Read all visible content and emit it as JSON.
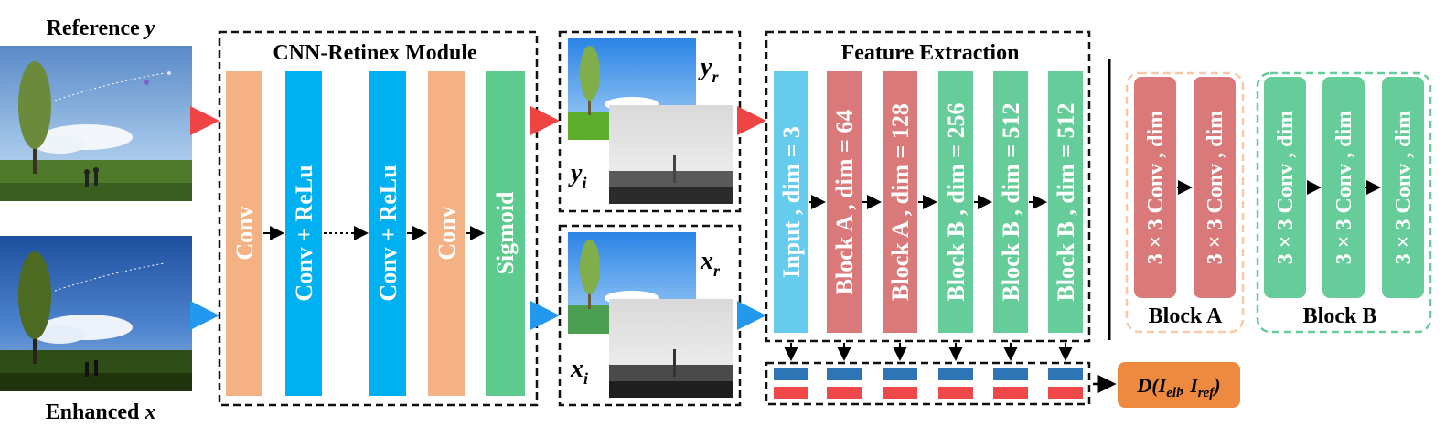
{
  "labels": {
    "reference": "Reference",
    "reference_var": "y",
    "enhanced": "Enhanced",
    "enhanced_var": "x",
    "cnn_title": "CNN-Retinex Module",
    "feature_title": "Feature Extraction",
    "y_r": "y",
    "y_r_sub": "r",
    "y_i": "y",
    "y_i_sub": "i",
    "x_r": "x",
    "x_r_sub": "r",
    "x_i": "x",
    "x_i_sub": "i",
    "block_a_title": "Block A",
    "block_b_title": "Block B",
    "distance": "D(I",
    "distance_sub1": "ell",
    "distance_mid": ", I",
    "distance_sub2": "ref",
    "distance_end": ")"
  },
  "cnn_layers": [
    {
      "label": "Conv"
    },
    {
      "label": "Conv + ReLu"
    },
    {
      "label": "Conv + ReLu"
    },
    {
      "label": "Conv"
    },
    {
      "label": "Sigmoid"
    }
  ],
  "feature_blocks": [
    {
      "label": "Input , dim = 3"
    },
    {
      "label": "Block A , dim = 64"
    },
    {
      "label": "Block A , dim = 128"
    },
    {
      "label": "Block B , dim = 256"
    },
    {
      "label": "Block B , dim = 512"
    },
    {
      "label": "Block B , dim = 512"
    }
  ],
  "block_a_layers": [
    "3 × 3 Conv , dim",
    "3 × 3 Conv , dim"
  ],
  "block_b_layers": [
    "3 × 3 Conv , dim",
    "3 × 3 Conv , dim",
    "3 × 3 Conv , dim"
  ],
  "colors": {
    "conv": "#f4b183",
    "conv_relu": "#00b0f0",
    "sigmoid": "#5ecb8e",
    "input": "#66ccee",
    "block_a": "#d9797a",
    "block_b": "#66cc99",
    "arrow_ref": "#ee4444",
    "arrow_enh": "#2299ee",
    "feat_blue": "#2e75b6",
    "feat_red": "#f04848",
    "distance_box": "#ed8a3f",
    "block_a_border": "#f8c9a8",
    "block_b_border": "#66cc99"
  }
}
